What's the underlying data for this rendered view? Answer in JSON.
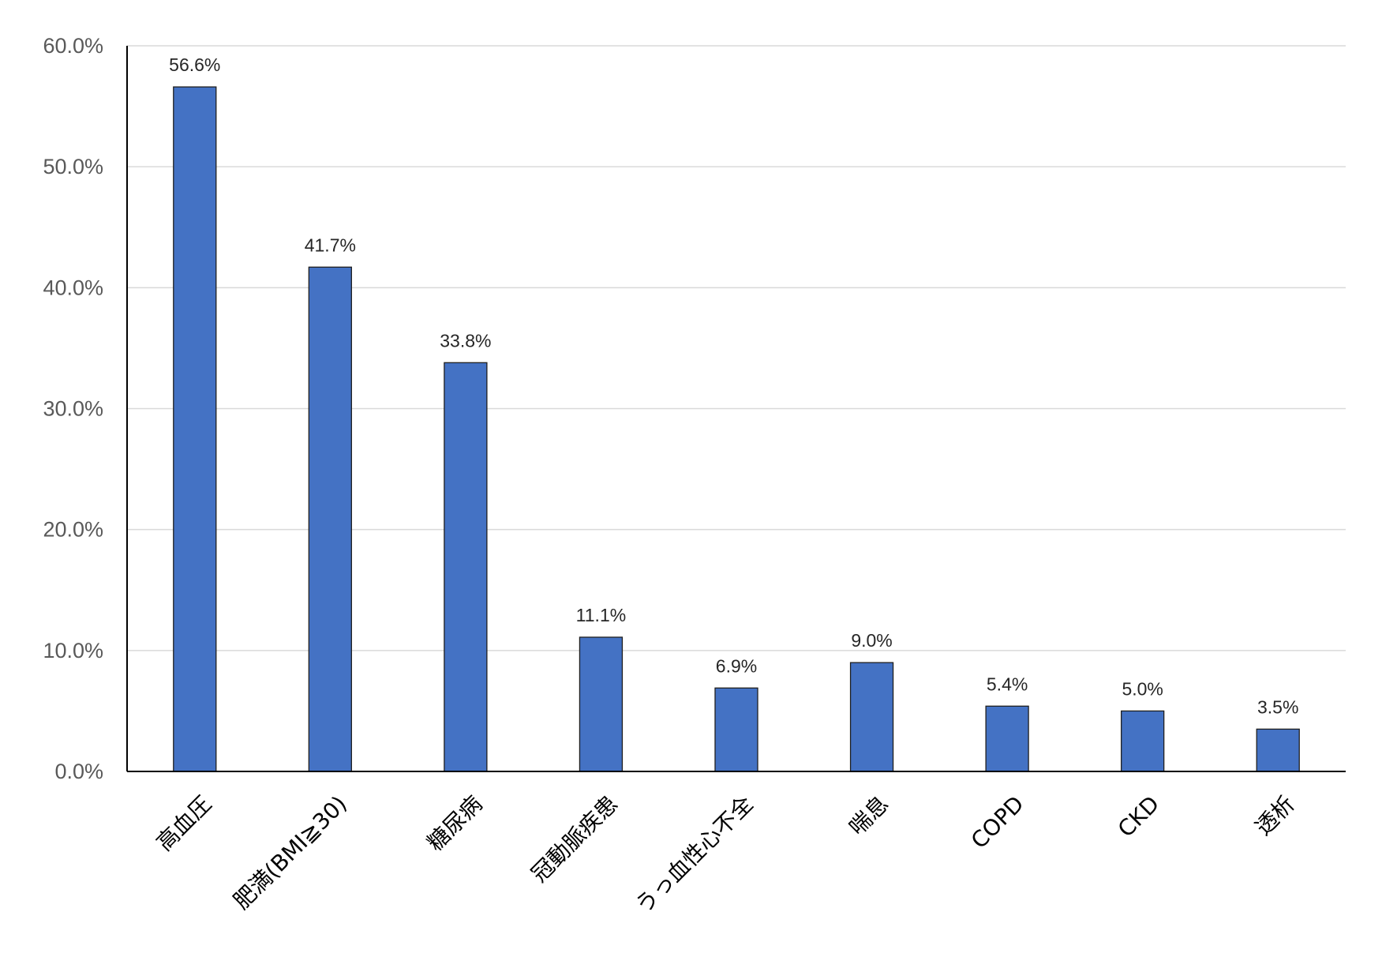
{
  "chart_data": {
    "type": "bar",
    "title": "",
    "xlabel": "",
    "ylabel": "",
    "categories": [
      "高血圧",
      "肥満(BMI≧30)",
      "糖尿病",
      "冠動脈疾患",
      "うっ血性心不全",
      "喘息",
      "COPD",
      "CKD",
      "透析"
    ],
    "values": [
      56.6,
      41.7,
      33.8,
      11.1,
      6.9,
      9.0,
      5.4,
      5.0,
      3.5
    ],
    "data_labels": [
      "56.6%",
      "41.7%",
      "33.8%",
      "11.1%",
      "6.9%",
      "9.0%",
      "5.4%",
      "5.0%",
      "3.5%"
    ],
    "ylim": [
      0,
      60
    ],
    "yticks": [
      0,
      10,
      20,
      30,
      40,
      50,
      60
    ],
    "ytick_labels": [
      "0.0%",
      "10.0%",
      "20.0%",
      "30.0%",
      "40.0%",
      "50.0%",
      "60.0%"
    ],
    "grid": true,
    "legend": "none",
    "colors": {
      "bar_fill": "#4472C4",
      "bar_stroke": "#1F1F1F",
      "gridline": "#D9D9D9",
      "axis": "#000000"
    }
  }
}
